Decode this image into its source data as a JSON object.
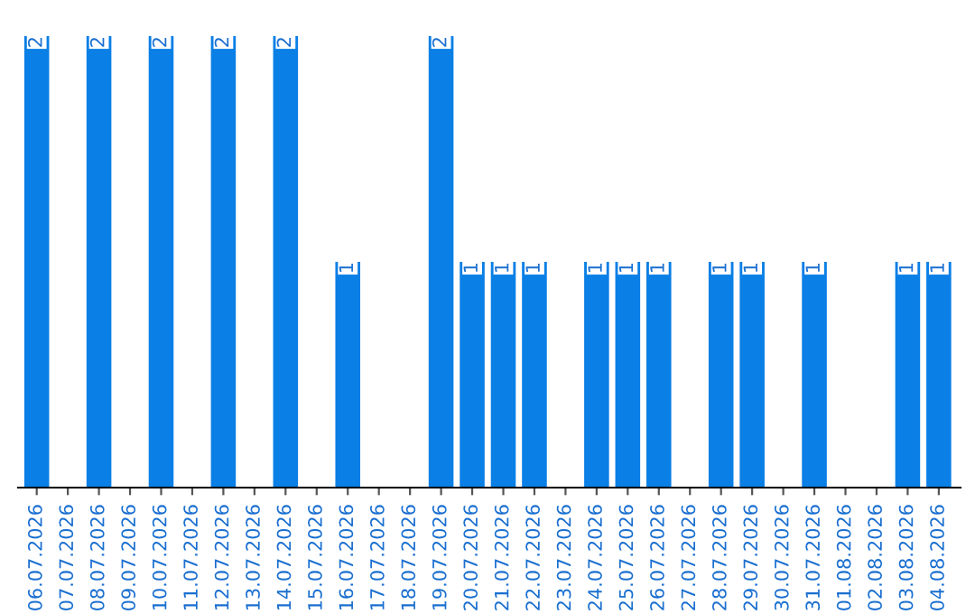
{
  "chart_data": {
    "type": "bar",
    "categories": [
      "06.07.2026",
      "07.07.2026",
      "08.07.2026",
      "09.07.2026",
      "10.07.2026",
      "11.07.2026",
      "12.07.2026",
      "13.07.2026",
      "14.07.2026",
      "15.07.2026",
      "16.07.2026",
      "17.07.2026",
      "18.07.2026",
      "19.07.2026",
      "20.07.2026",
      "21.07.2026",
      "22.07.2026",
      "23.07.2026",
      "24.07.2026",
      "25.07.2026",
      "26.07.2026",
      "27.07.2026",
      "28.07.2026",
      "29.07.2026",
      "30.07.2026",
      "31.07.2026",
      "01.08.2026",
      "02.08.2026",
      "03.08.2026",
      "04.08.2026"
    ],
    "values": [
      2,
      0,
      2,
      0,
      2,
      0,
      2,
      0,
      2,
      0,
      1,
      0,
      0,
      2,
      1,
      1,
      1,
      0,
      1,
      1,
      1,
      0,
      1,
      1,
      0,
      1,
      0,
      0,
      1,
      1
    ],
    "value_labels": [
      "2",
      null,
      "2",
      null,
      "2",
      null,
      "2",
      null,
      "2",
      null,
      "1",
      null,
      null,
      "2",
      "1",
      "1",
      "1",
      null,
      "1",
      "1",
      "1",
      null,
      "1",
      "1",
      null,
      "1",
      null,
      null,
      "1",
      "1"
    ],
    "color": "#0a7fe6",
    "grid": false,
    "legend": false
  }
}
